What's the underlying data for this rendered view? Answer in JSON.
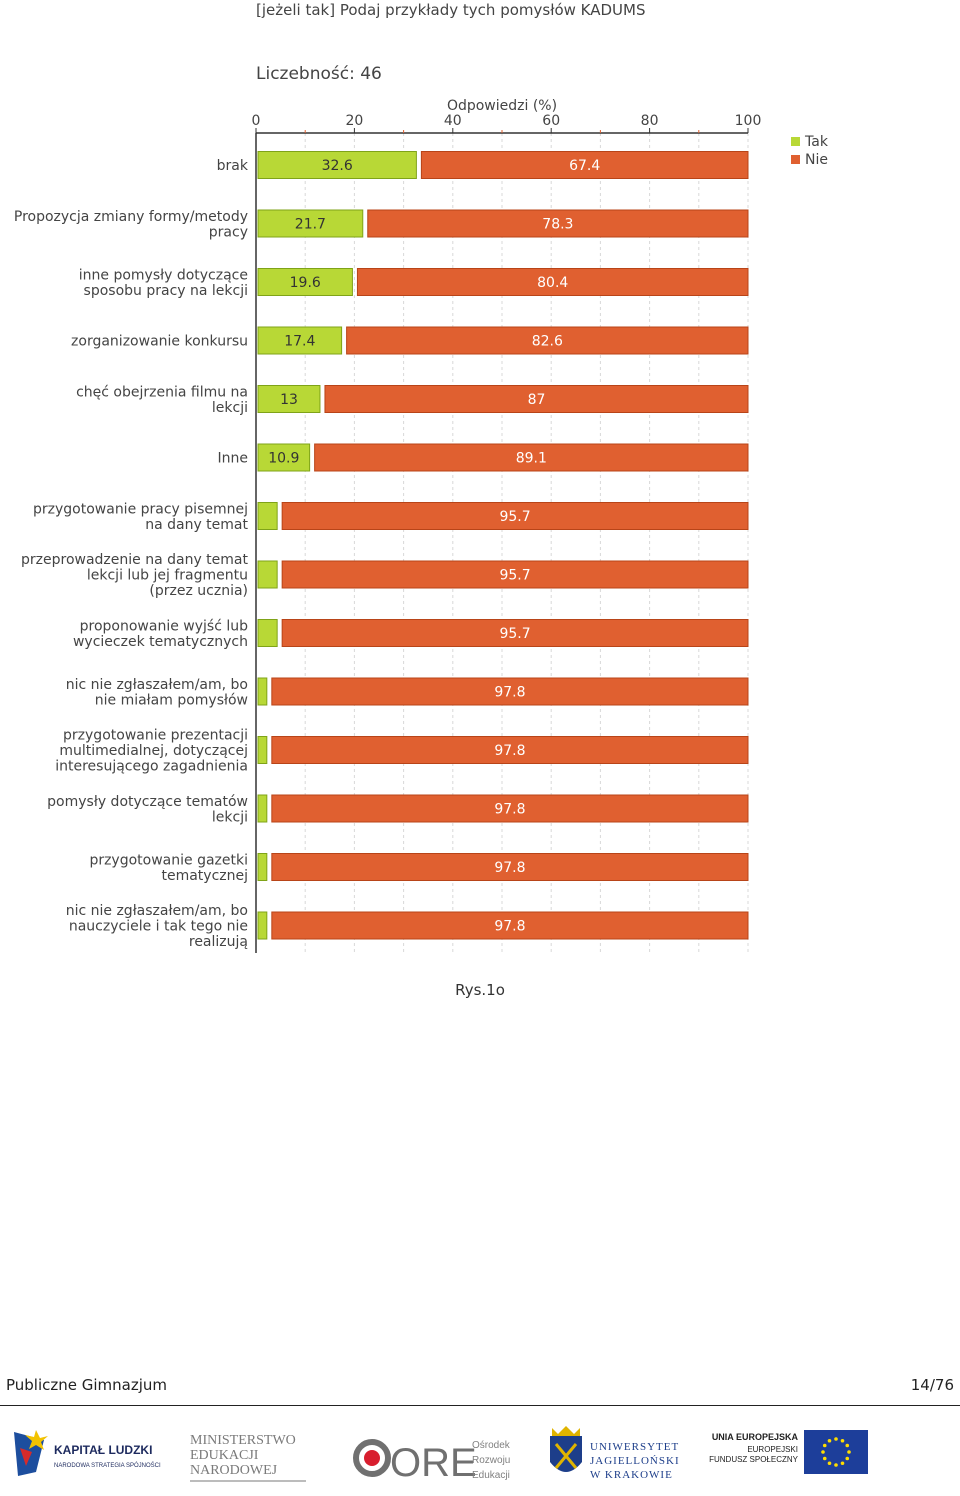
{
  "question_title": "[jeżeli tak] Podaj przykłady tych pomysłów KADUMS",
  "count_label": "Liczebność: 46",
  "chart_data": {
    "type": "bar",
    "orientation": "horizontal",
    "stacked": true,
    "title": "Odpowiedzi (%)",
    "xlim": [
      0,
      100
    ],
    "x_ticks": [
      "0",
      "20",
      "40",
      "60",
      "80",
      "100"
    ],
    "grid": true,
    "legend_position": "top-right",
    "categories": [
      [
        "brak"
      ],
      [
        "Propozycja zmiany formy/metody",
        "pracy"
      ],
      [
        "inne pomysły dotyczące",
        "sposobu pracy na lekcji"
      ],
      [
        "zorganizowanie konkursu"
      ],
      [
        "chęć obejrzenia filmu na",
        "lekcji"
      ],
      [
        "Inne"
      ],
      [
        "przygotowanie pracy pisemnej",
        "na dany temat"
      ],
      [
        "przeprowadzenie na dany temat",
        "lekcji lub jej fragmentu",
        "(przez ucznia)"
      ],
      [
        "proponowanie wyjść lub",
        "wycieczek tematycznych"
      ],
      [
        "nic nie zgłaszałem/am, bo",
        "nie miałam pomysłów"
      ],
      [
        "przygotowanie prezentacji",
        "multimedialnej, dotyczącej",
        "interesującego zagadnienia"
      ],
      [
        "pomysły dotyczące tematów",
        "lekcji"
      ],
      [
        "przygotowanie gazetki",
        "tematycznej"
      ],
      [
        "nic nie zgłaszałem/am,  bo",
        "nauczyciele i tak tego nie",
        "realizują"
      ]
    ],
    "series": [
      {
        "name": "Tak",
        "color": "#b8d836",
        "values": [
          32.6,
          21.7,
          19.6,
          17.4,
          13,
          10.9,
          4.3,
          4.3,
          4.3,
          2.2,
          2.2,
          2.2,
          2.2,
          2.2
        ],
        "labels": [
          "32.6",
          "21.7",
          "19.6",
          "17.4",
          "13",
          "10.9",
          "",
          "",
          "",
          "",
          "",
          "",
          "",
          ""
        ]
      },
      {
        "name": "Nie",
        "color": "#e06030",
        "values": [
          67.4,
          78.3,
          80.4,
          82.6,
          87,
          89.1,
          95.7,
          95.7,
          95.7,
          97.8,
          97.8,
          97.8,
          97.8,
          97.8
        ],
        "labels": [
          "67.4",
          "78.3",
          "80.4",
          "82.6",
          "87",
          "89.1",
          "95.7",
          "95.7",
          "95.7",
          "97.8",
          "97.8",
          "97.8",
          "97.8",
          "97.8"
        ]
      }
    ]
  },
  "caption": "Rys.1o",
  "footer": {
    "left": "Publiczne Gimnazjum",
    "right": "14/76"
  },
  "logos": {
    "kl": {
      "main": "KAPITAŁ LUDZKI",
      "sub": "NARODOWA STRATEGIA SPÓJNOŚCI"
    },
    "men": [
      "MINISTERSTWO",
      "EDUKACJI",
      "NARODOWEJ"
    ],
    "ore": {
      "main": "ORE",
      "lines": [
        "Ośrodek",
        "Rozwoju",
        "Edukacji"
      ]
    },
    "uj": [
      "UNIWERSYTET",
      "JAGIELLOŃSKI",
      "W KRAKOWIE"
    ],
    "eu": [
      "UNIA EUROPEJSKA",
      "EUROPEJSKI",
      "FUNDUSZ SPOŁECZNY"
    ]
  }
}
